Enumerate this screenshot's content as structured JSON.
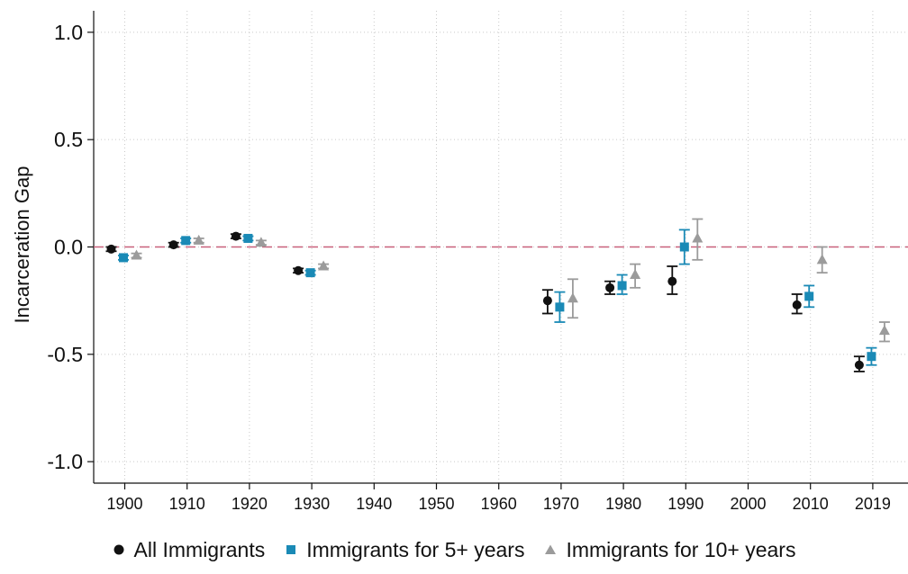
{
  "chart_data": {
    "type": "scatter",
    "xlabel": "",
    "ylabel": "Incarceration Gap",
    "ylim": [
      -1.1,
      1.1
    ],
    "yticks": [
      1.0,
      0.5,
      0.0,
      -0.5,
      -1.0
    ],
    "ytick_labels": [
      "1.0",
      "0.5",
      "0.0",
      "-0.5",
      "-1.0"
    ],
    "xticks": [
      1900,
      1910,
      1920,
      1930,
      1940,
      1950,
      1960,
      1970,
      1980,
      1990,
      2000,
      2010,
      2019
    ],
    "xtick_labels": [
      "1900",
      "1910",
      "1920",
      "1930",
      "1940",
      "1950",
      "1960",
      "1970",
      "1980",
      "1990",
      "2000",
      "2010",
      "2019"
    ],
    "grid": true,
    "reference_line": {
      "y": 0.0,
      "style": "dashed",
      "color": "#c8607a"
    },
    "legend_position": "bottom",
    "series": [
      {
        "name": "All Immigrants",
        "marker": "circle",
        "color": "#111111",
        "points": [
          {
            "x": 1900,
            "y": -0.01,
            "lo": -0.02,
            "hi": 0.0
          },
          {
            "x": 1910,
            "y": 0.01,
            "lo": 0.0,
            "hi": 0.02
          },
          {
            "x": 1920,
            "y": 0.05,
            "lo": 0.04,
            "hi": 0.06
          },
          {
            "x": 1930,
            "y": -0.11,
            "lo": -0.12,
            "hi": -0.1
          },
          {
            "x": 1970,
            "y": -0.25,
            "lo": -0.31,
            "hi": -0.2
          },
          {
            "x": 1980,
            "y": -0.19,
            "lo": -0.22,
            "hi": -0.16
          },
          {
            "x": 1990,
            "y": -0.16,
            "lo": -0.22,
            "hi": -0.09
          },
          {
            "x": 2010,
            "y": -0.27,
            "lo": -0.31,
            "hi": -0.22
          },
          {
            "x": 2019,
            "y": -0.55,
            "lo": -0.58,
            "hi": -0.51
          }
        ]
      },
      {
        "name": "Immigrants for 5+ years",
        "marker": "square",
        "color": "#1a8ab6",
        "points": [
          {
            "x": 1900,
            "y": -0.05,
            "lo": -0.06,
            "hi": -0.04
          },
          {
            "x": 1910,
            "y": 0.03,
            "lo": 0.02,
            "hi": 0.04
          },
          {
            "x": 1920,
            "y": 0.04,
            "lo": 0.03,
            "hi": 0.05
          },
          {
            "x": 1930,
            "y": -0.12,
            "lo": -0.13,
            "hi": -0.11
          },
          {
            "x": 1970,
            "y": -0.28,
            "lo": -0.35,
            "hi": -0.21
          },
          {
            "x": 1980,
            "y": -0.18,
            "lo": -0.22,
            "hi": -0.13
          },
          {
            "x": 1990,
            "y": 0.0,
            "lo": -0.08,
            "hi": 0.08
          },
          {
            "x": 2010,
            "y": -0.23,
            "lo": -0.28,
            "hi": -0.18
          },
          {
            "x": 2019,
            "y": -0.51,
            "lo": -0.55,
            "hi": -0.47
          }
        ]
      },
      {
        "name": "Immigrants for 10+ years",
        "marker": "triangle",
        "color": "#9b9b9b",
        "points": [
          {
            "x": 1900,
            "y": -0.04,
            "lo": -0.05,
            "hi": -0.03
          },
          {
            "x": 1910,
            "y": 0.03,
            "lo": 0.02,
            "hi": 0.04
          },
          {
            "x": 1920,
            "y": 0.02,
            "lo": 0.01,
            "hi": 0.03
          },
          {
            "x": 1930,
            "y": -0.09,
            "lo": -0.1,
            "hi": -0.08
          },
          {
            "x": 1970,
            "y": -0.24,
            "lo": -0.33,
            "hi": -0.15
          },
          {
            "x": 1980,
            "y": -0.13,
            "lo": -0.19,
            "hi": -0.08
          },
          {
            "x": 1990,
            "y": 0.04,
            "lo": -0.06,
            "hi": 0.13
          },
          {
            "x": 2010,
            "y": -0.06,
            "lo": -0.12,
            "hi": 0.0
          },
          {
            "x": 2019,
            "y": -0.39,
            "lo": -0.44,
            "hi": -0.35
          }
        ]
      }
    ]
  }
}
